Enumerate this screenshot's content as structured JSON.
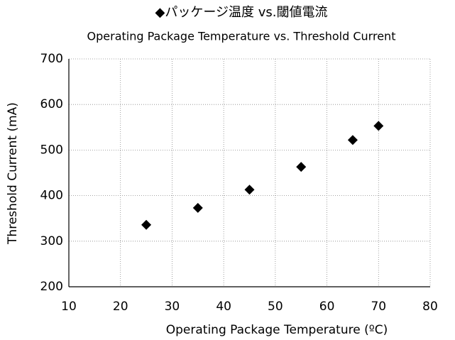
{
  "chart_data": {
    "type": "scatter",
    "title": "◆パッケージ温度 vs.閾値電流",
    "subtitle": "Operating Package Temperature vs. Threshold Current",
    "x_label": "Operating Package Temperature (ºC)",
    "y_label": "Threshold Current (mA)",
    "series": [
      {
        "name": "Threshold Current",
        "color": "#000000",
        "x": [
          25,
          35,
          45,
          55,
          65,
          70
        ],
        "values": [
          336,
          373,
          413,
          463,
          522,
          553
        ]
      }
    ],
    "xlim": [
      10,
      80
    ],
    "xticks": [
      10,
      20,
      30,
      40,
      50,
      60,
      70,
      80
    ],
    "ylim": [
      200,
      700
    ],
    "yticks": [
      200,
      300,
      400,
      500,
      600,
      700
    ],
    "grid": true
  }
}
